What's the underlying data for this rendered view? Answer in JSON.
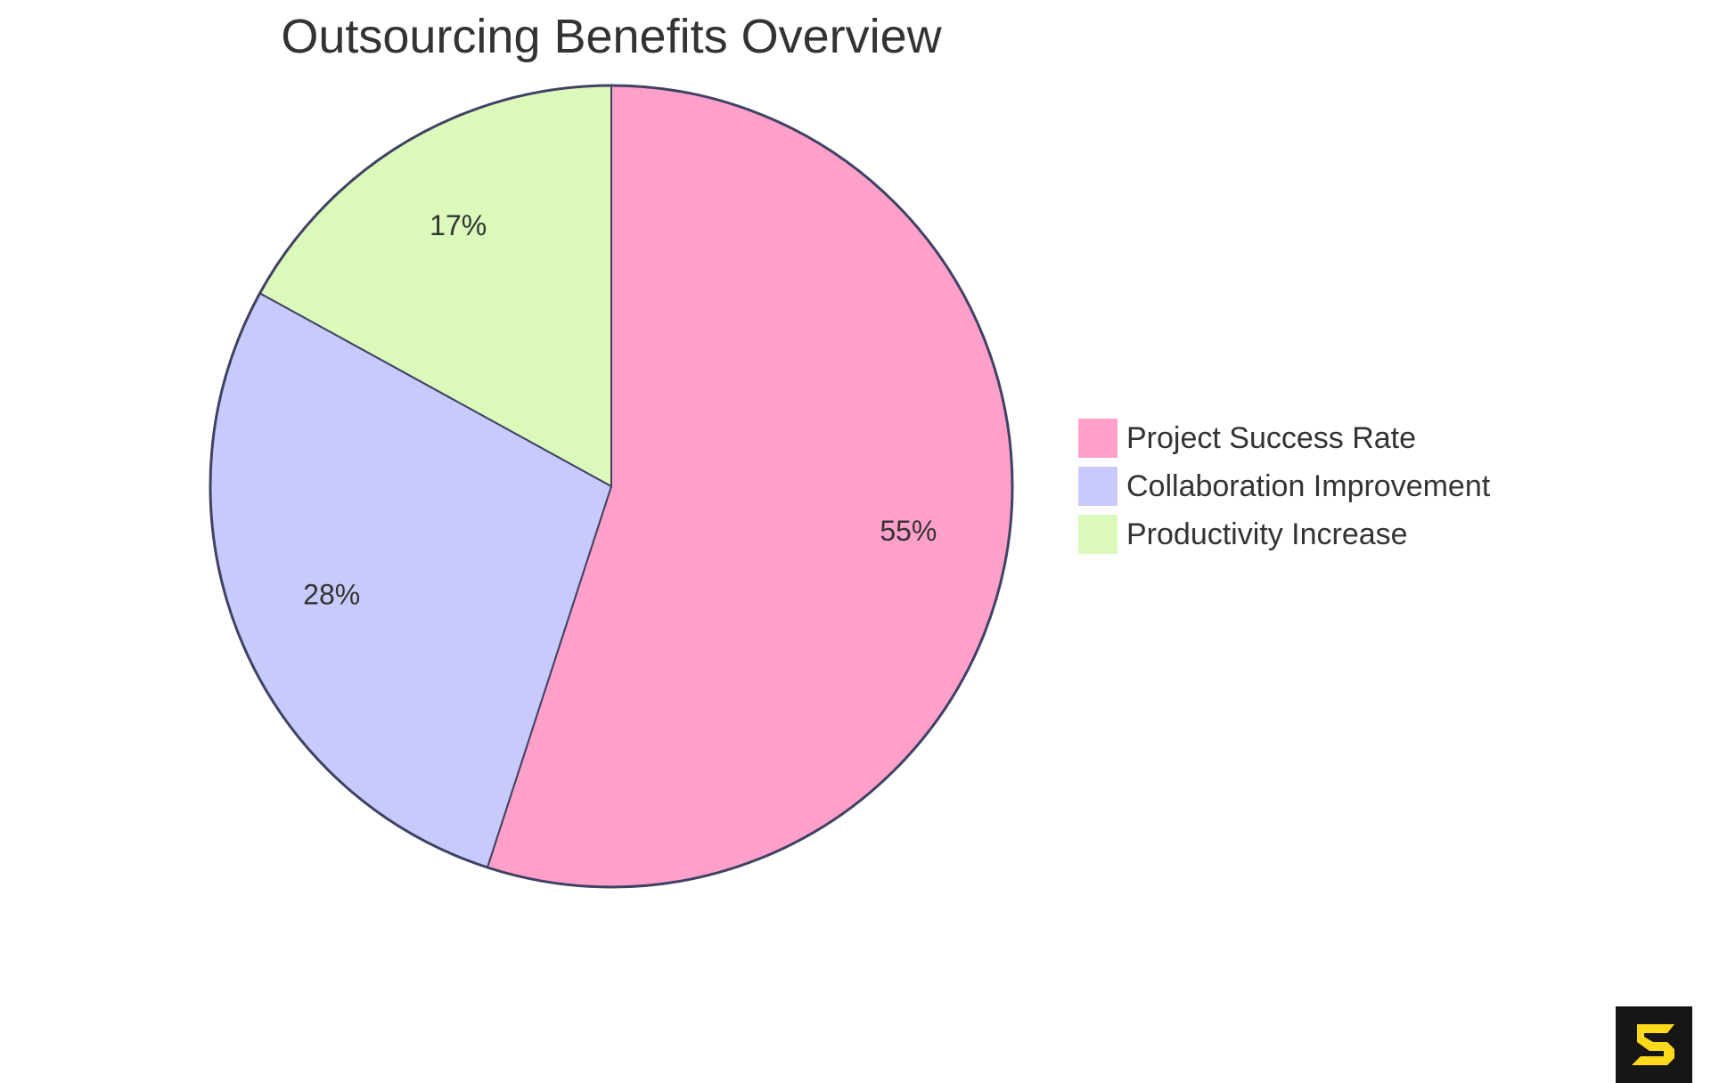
{
  "title": "Outsourcing Benefits Overview",
  "chart_data": {
    "type": "pie",
    "title": "Outsourcing Benefits Overview",
    "categories": [
      "Project Success Rate",
      "Collaboration Improvement",
      "Productivity Increase"
    ],
    "values": [
      55,
      28,
      17
    ],
    "labels": [
      "55%",
      "28%",
      "17%"
    ],
    "colors": [
      "#FFA0CB",
      "#C9CAFC",
      "#DBF9BA"
    ],
    "stroke": "#3F4263",
    "legend_position": "right",
    "start_angle": "top, clockwise"
  },
  "legend": {
    "items": [
      {
        "label": "Project Success Rate",
        "color": "#FFA0CB"
      },
      {
        "label": "Collaboration Improvement",
        "color": "#C9CAFC"
      },
      {
        "label": "Productivity Increase",
        "color": "#DBF9BA"
      }
    ]
  },
  "logo": {
    "icon": "s-logo-icon",
    "bg": "#161616",
    "fg": "#FDD91C"
  }
}
